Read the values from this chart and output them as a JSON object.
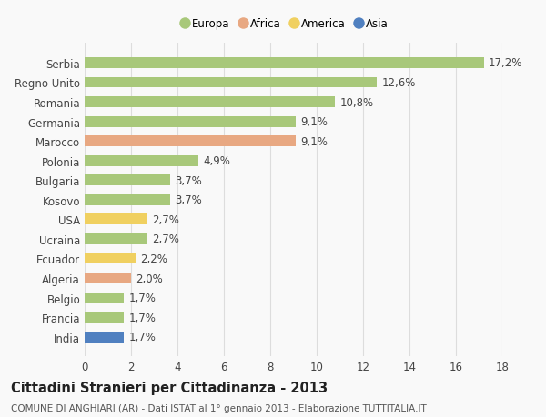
{
  "countries": [
    "Serbia",
    "Regno Unito",
    "Romania",
    "Germania",
    "Marocco",
    "Polonia",
    "Bulgaria",
    "Kosovo",
    "USA",
    "Ucraina",
    "Ecuador",
    "Algeria",
    "Belgio",
    "Francia",
    "India"
  ],
  "values": [
    17.2,
    12.6,
    10.8,
    9.1,
    9.1,
    4.9,
    3.7,
    3.7,
    2.7,
    2.7,
    2.2,
    2.0,
    1.7,
    1.7,
    1.7
  ],
  "continents": [
    "Europa",
    "Europa",
    "Europa",
    "Europa",
    "Africa",
    "Europa",
    "Europa",
    "Europa",
    "America",
    "Europa",
    "America",
    "Africa",
    "Europa",
    "Europa",
    "Asia"
  ],
  "colors": {
    "Europa": "#a8c87a",
    "Africa": "#e8a882",
    "America": "#f0d060",
    "Asia": "#5080c0"
  },
  "xlim": [
    0,
    18
  ],
  "xticks": [
    0,
    2,
    4,
    6,
    8,
    10,
    12,
    14,
    16,
    18
  ],
  "title": "Cittadini Stranieri per Cittadinanza - 2013",
  "subtitle": "COMUNE DI ANGHIARI (AR) - Dati ISTAT al 1° gennaio 2013 - Elaborazione TUTTITALIA.IT",
  "background_color": "#f9f9f9",
  "grid_color": "#dddddd",
  "bar_height": 0.55,
  "label_fontsize": 8.5,
  "value_fontsize": 8.5,
  "title_fontsize": 10.5,
  "subtitle_fontsize": 7.5,
  "legend_order": [
    "Europa",
    "Africa",
    "America",
    "Asia"
  ]
}
